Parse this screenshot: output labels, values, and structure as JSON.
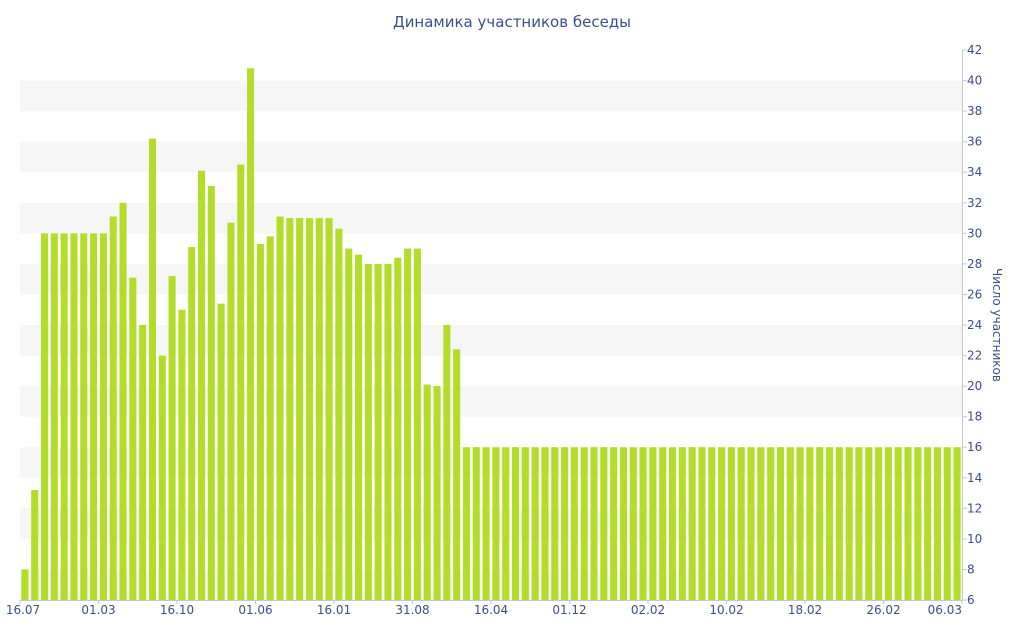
{
  "chart_data": {
    "type": "bar",
    "title": "Динамика участников беседы",
    "xlabel": "",
    "ylabel": "Число участников",
    "ylim": [
      6,
      42
    ],
    "y_ticks": [
      6,
      8,
      10,
      12,
      14,
      16,
      18,
      20,
      22,
      24,
      26,
      28,
      30,
      32,
      34,
      36,
      38,
      40,
      42
    ],
    "x_tick_labels": [
      "16.07",
      "01.03",
      "16.10",
      "01.06",
      "16.01",
      "31.08",
      "16.04",
      "01.12",
      "02.02",
      "10.02",
      "18.02",
      "26.02",
      "06.03"
    ],
    "grid": "horizontal bands",
    "bar_color": "#b4dc2a",
    "band_color": "#f6f6f6",
    "text_color": "#3b4f8c",
    "values": [
      8,
      13.2,
      30,
      30,
      30,
      30,
      30,
      30,
      30,
      31.1,
      32,
      27.1,
      24,
      36.2,
      22,
      27.2,
      25,
      29.1,
      34.1,
      33.1,
      25.4,
      30.7,
      34.5,
      40.8,
      29.3,
      29.8,
      31.1,
      31,
      31,
      31,
      31,
      31,
      30.3,
      29,
      28.6,
      28,
      28,
      28,
      28.4,
      29,
      29,
      20.1,
      20,
      24,
      22.4,
      16,
      16,
      16,
      16,
      16,
      16,
      16,
      16,
      16,
      16,
      16,
      16,
      16,
      16,
      16,
      16,
      16,
      16,
      16,
      16,
      16,
      16,
      16,
      16,
      16,
      16,
      16,
      16,
      16,
      16,
      16,
      16,
      16,
      16,
      16,
      16,
      16,
      16,
      16,
      16,
      16,
      16,
      16,
      16,
      16,
      16,
      16,
      16,
      16,
      16,
      16
    ]
  }
}
